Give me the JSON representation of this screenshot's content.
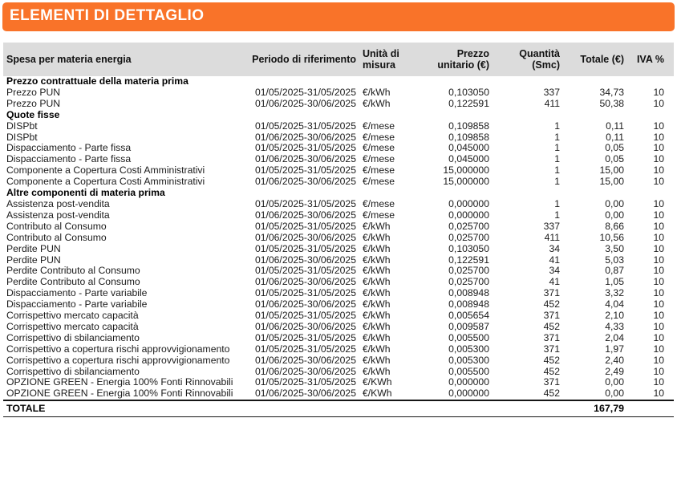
{
  "title": "ELEMENTI DI DETTAGLIO",
  "colors": {
    "accent_orange": "#f97329",
    "header_row_gray": "#dcdcdc"
  },
  "table": {
    "headers": [
      "Spesa per materia energia",
      "Periodo di riferimento",
      "Unità di misura",
      "Prezzo unitario (€)",
      "Quantità (Smc)",
      "Totale (€)",
      "IVA %"
    ],
    "rows": [
      {
        "type": "section",
        "label": "Prezzo contrattuale della materia prima"
      },
      {
        "type": "item",
        "label": "Prezzo PUN",
        "periodo": "01/05/2025-31/05/2025",
        "unita": "€/kWh",
        "prezzo": "0,103050",
        "quantita": "337",
        "totale": "34,73",
        "iva": "10"
      },
      {
        "type": "item",
        "label": "Prezzo PUN",
        "periodo": "01/06/2025-30/06/2025",
        "unita": "€/kWh",
        "prezzo": "0,122591",
        "quantita": "411",
        "totale": "50,38",
        "iva": "10"
      },
      {
        "type": "section",
        "label": "Quote fisse"
      },
      {
        "type": "item",
        "label": "DISPbt",
        "periodo": "01/05/2025-31/05/2025",
        "unita": "€/mese",
        "prezzo": "0,109858",
        "quantita": "1",
        "totale": "0,11",
        "iva": "10"
      },
      {
        "type": "item",
        "label": "DISPbt",
        "periodo": "01/06/2025-30/06/2025",
        "unita": "€/mese",
        "prezzo": "0,109858",
        "quantita": "1",
        "totale": "0,11",
        "iva": "10"
      },
      {
        "type": "item",
        "label": "Dispacciamento - Parte fissa",
        "periodo": "01/05/2025-31/05/2025",
        "unita": "€/mese",
        "prezzo": "0,045000",
        "quantita": "1",
        "totale": "0,05",
        "iva": "10"
      },
      {
        "type": "item",
        "label": "Dispacciamento - Parte fissa",
        "periodo": "01/06/2025-30/06/2025",
        "unita": "€/mese",
        "prezzo": "0,045000",
        "quantita": "1",
        "totale": "0,05",
        "iva": "10"
      },
      {
        "type": "item",
        "label": "Componente a Copertura Costi Amministrativi",
        "periodo": "01/05/2025-31/05/2025",
        "unita": "€/mese",
        "prezzo": "15,000000",
        "quantita": "1",
        "totale": "15,00",
        "iva": "10"
      },
      {
        "type": "item",
        "label": "Componente a Copertura Costi Amministrativi",
        "periodo": "01/06/2025-30/06/2025",
        "unita": "€/mese",
        "prezzo": "15,000000",
        "quantita": "1",
        "totale": "15,00",
        "iva": "10"
      },
      {
        "type": "section",
        "label": "Altre componenti di materia prima"
      },
      {
        "type": "item",
        "label": "Assistenza post-vendita",
        "periodo": "01/05/2025-31/05/2025",
        "unita": "€/mese",
        "prezzo": "0,000000",
        "quantita": "1",
        "totale": "0,00",
        "iva": "10"
      },
      {
        "type": "item",
        "label": "Assistenza post-vendita",
        "periodo": "01/06/2025-30/06/2025",
        "unita": "€/mese",
        "prezzo": "0,000000",
        "quantita": "1",
        "totale": "0,00",
        "iva": "10"
      },
      {
        "type": "item",
        "label": "Contributo al Consumo",
        "periodo": "01/05/2025-31/05/2025",
        "unita": "€/kWh",
        "prezzo": "0,025700",
        "quantita": "337",
        "totale": "8,66",
        "iva": "10"
      },
      {
        "type": "item",
        "label": "Contributo al Consumo",
        "periodo": "01/06/2025-30/06/2025",
        "unita": "€/kWh",
        "prezzo": "0,025700",
        "quantita": "411",
        "totale": "10,56",
        "iva": "10"
      },
      {
        "type": "item",
        "label": "Perdite PUN",
        "periodo": "01/05/2025-31/05/2025",
        "unita": "€/kWh",
        "prezzo": "0,103050",
        "quantita": "34",
        "totale": "3,50",
        "iva": "10"
      },
      {
        "type": "item",
        "label": "Perdite PUN",
        "periodo": "01/06/2025-30/06/2025",
        "unita": "€/kWh",
        "prezzo": "0,122591",
        "quantita": "41",
        "totale": "5,03",
        "iva": "10"
      },
      {
        "type": "item",
        "label": "Perdite Contributo al Consumo",
        "periodo": "01/05/2025-31/05/2025",
        "unita": "€/kWh",
        "prezzo": "0,025700",
        "quantita": "34",
        "totale": "0,87",
        "iva": "10"
      },
      {
        "type": "item",
        "label": "Perdite Contributo al Consumo",
        "periodo": "01/06/2025-30/06/2025",
        "unita": "€/kWh",
        "prezzo": "0,025700",
        "quantita": "41",
        "totale": "1,05",
        "iva": "10"
      },
      {
        "type": "item",
        "label": "Dispacciamento - Parte variabile",
        "periodo": "01/05/2025-31/05/2025",
        "unita": "€/kWh",
        "prezzo": "0,008948",
        "quantita": "371",
        "totale": "3,32",
        "iva": "10"
      },
      {
        "type": "item",
        "label": "Dispacciamento - Parte variabile",
        "periodo": "01/06/2025-30/06/2025",
        "unita": "€/kWh",
        "prezzo": "0,008948",
        "quantita": "452",
        "totale": "4,04",
        "iva": "10"
      },
      {
        "type": "item",
        "label": "Corrispettivo mercato capacità",
        "periodo": "01/05/2025-31/05/2025",
        "unita": "€/kWh",
        "prezzo": "0,005654",
        "quantita": "371",
        "totale": "2,10",
        "iva": "10"
      },
      {
        "type": "item",
        "label": "Corrispettivo mercato capacità",
        "periodo": "01/06/2025-30/06/2025",
        "unita": "€/kWh",
        "prezzo": "0,009587",
        "quantita": "452",
        "totale": "4,33",
        "iva": "10"
      },
      {
        "type": "item",
        "label": "Corrispettivo di sbilanciamento",
        "periodo": "01/05/2025-31/05/2025",
        "unita": "€/kWh",
        "prezzo": "0,005500",
        "quantita": "371",
        "totale": "2,04",
        "iva": "10"
      },
      {
        "type": "item",
        "label": "Corrispettivo a copertura rischi approvvigionamento",
        "periodo": "01/05/2025-31/05/2025",
        "unita": "€/kWh",
        "prezzo": "0,005300",
        "quantita": "371",
        "totale": "1,97",
        "iva": "10"
      },
      {
        "type": "item",
        "label": "Corrispettivo a copertura rischi approvvigionamento",
        "periodo": "01/06/2025-30/06/2025",
        "unita": "€/kWh",
        "prezzo": "0,005300",
        "quantita": "452",
        "totale": "2,40",
        "iva": "10"
      },
      {
        "type": "item",
        "label": "Corrispettivo di sbilanciamento",
        "periodo": "01/06/2025-30/06/2025",
        "unita": "€/kWh",
        "prezzo": "0,005500",
        "quantita": "452",
        "totale": "2,49",
        "iva": "10"
      },
      {
        "type": "item",
        "label": "OPZIONE GREEN - Energia 100% Fonti Rinnovabili",
        "periodo": "01/05/2025-31/05/2025",
        "unita": "€/KWh",
        "prezzo": "0,000000",
        "quantita": "371",
        "totale": "0,00",
        "iva": "10"
      },
      {
        "type": "item",
        "label": "OPZIONE GREEN - Energia 100% Fonti Rinnovabili",
        "periodo": "01/06/2025-30/06/2025",
        "unita": "€/KWh",
        "prezzo": "0,000000",
        "quantita": "452",
        "totale": "0,00",
        "iva": "10"
      }
    ],
    "total_label": "TOTALE",
    "total_value": "167,79"
  }
}
